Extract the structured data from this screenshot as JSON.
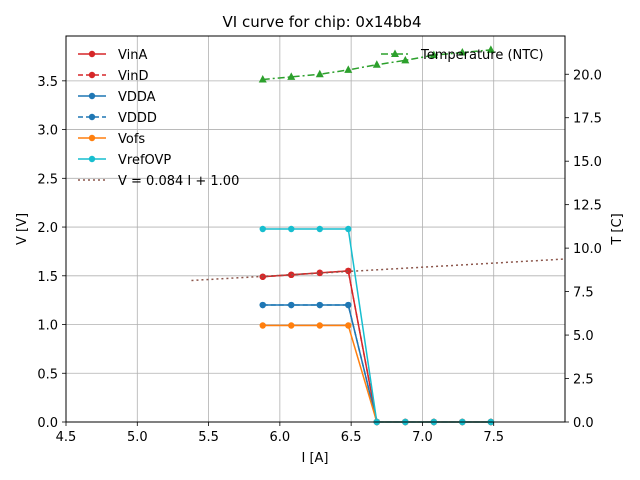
{
  "chart_data": {
    "type": "line",
    "title": "VI curve for chip: 0x14bb4",
    "xlabel": "I [A]",
    "ylabel": "V [V]",
    "y2label": "T [C]",
    "xlim": [
      4.5,
      8.0
    ],
    "ylim": [
      0,
      3.96
    ],
    "y2lim": [
      0,
      22.2
    ],
    "xticks": [
      4.5,
      5.0,
      5.5,
      6.0,
      6.5,
      7.0,
      7.5
    ],
    "yticks": [
      0.0,
      0.5,
      1.0,
      1.5,
      2.0,
      2.5,
      3.0,
      3.5
    ],
    "y2ticks": [
      0.0,
      2.5,
      5.0,
      7.5,
      10.0,
      12.5,
      15.0,
      17.5,
      20.0
    ],
    "grid": true,
    "legend_left_placement": "top-left",
    "legend_right_placement": "top-right",
    "series": [
      {
        "name": "VinA",
        "axis": "left",
        "color": "#d62728",
        "style": "solid",
        "marker": "circle",
        "x": [
          5.88,
          6.08,
          6.28,
          6.48,
          6.68,
          6.88,
          7.08,
          7.28,
          7.48
        ],
        "values": [
          1.49,
          1.51,
          1.53,
          1.55,
          0.0,
          0.0,
          0.0,
          0.0,
          0.0
        ]
      },
      {
        "name": "VinD",
        "axis": "left",
        "color": "#d62728",
        "style": "dashed",
        "marker": "circle",
        "x": [
          5.88,
          6.08,
          6.28,
          6.48,
          6.68,
          6.88,
          7.08,
          7.28,
          7.48
        ],
        "values": [
          1.49,
          1.51,
          1.53,
          1.55,
          0.0,
          0.0,
          0.0,
          0.0,
          0.0
        ]
      },
      {
        "name": "VDDA",
        "axis": "left",
        "color": "#1f77b4",
        "style": "solid",
        "marker": "circle",
        "x": [
          5.88,
          6.08,
          6.28,
          6.48,
          6.68,
          6.88,
          7.08,
          7.28,
          7.48
        ],
        "values": [
          1.2,
          1.2,
          1.2,
          1.2,
          0.0,
          0.0,
          0.0,
          0.0,
          0.0
        ]
      },
      {
        "name": "VDDD",
        "axis": "left",
        "color": "#1f77b4",
        "style": "dashed",
        "marker": "circle",
        "x": [
          5.88,
          6.08,
          6.28,
          6.48,
          6.68,
          6.88,
          7.08,
          7.28,
          7.48
        ],
        "values": [
          1.2,
          1.2,
          1.2,
          1.2,
          0.0,
          0.0,
          0.0,
          0.0,
          0.0
        ]
      },
      {
        "name": "Vofs",
        "axis": "left",
        "color": "#ff7f0e",
        "style": "solid",
        "marker": "circle",
        "x": [
          5.88,
          6.08,
          6.28,
          6.48,
          6.68,
          6.88,
          7.08,
          7.28,
          7.48
        ],
        "values": [
          0.99,
          0.99,
          0.99,
          0.99,
          0.0,
          0.0,
          0.0,
          0.0,
          0.0
        ]
      },
      {
        "name": "VrefOVP",
        "axis": "left",
        "color": "#17becf",
        "style": "solid",
        "marker": "circle",
        "x": [
          5.88,
          6.08,
          6.28,
          6.48,
          6.68,
          6.88,
          7.08,
          7.28,
          7.48
        ],
        "values": [
          1.98,
          1.98,
          1.98,
          1.98,
          0.0,
          0.0,
          0.0,
          0.0,
          0.0
        ]
      },
      {
        "name": "V = 0.084 I + 1.00",
        "axis": "left",
        "color": "#8c564b",
        "style": "dotted",
        "marker": "none",
        "x": [
          5.38,
          8.0
        ],
        "values": [
          1.452,
          1.672
        ]
      },
      {
        "name": "Temperature (NTC)",
        "axis": "right",
        "color": "#2ca02c",
        "style": "dashdot",
        "marker": "triangle",
        "x": [
          5.88,
          6.08,
          6.28,
          6.48,
          6.68,
          6.88,
          7.08,
          7.28,
          7.48
        ],
        "values": [
          19.7,
          19.85,
          20.0,
          20.25,
          20.55,
          20.8,
          21.1,
          21.25,
          21.4
        ]
      }
    ],
    "legend_left": [
      "VinA",
      "VinD",
      "VDDA",
      "VDDD",
      "Vofs",
      "VrefOVP",
      "V = 0.084 I + 1.00"
    ],
    "legend_right": [
      "Temperature (NTC)"
    ]
  }
}
